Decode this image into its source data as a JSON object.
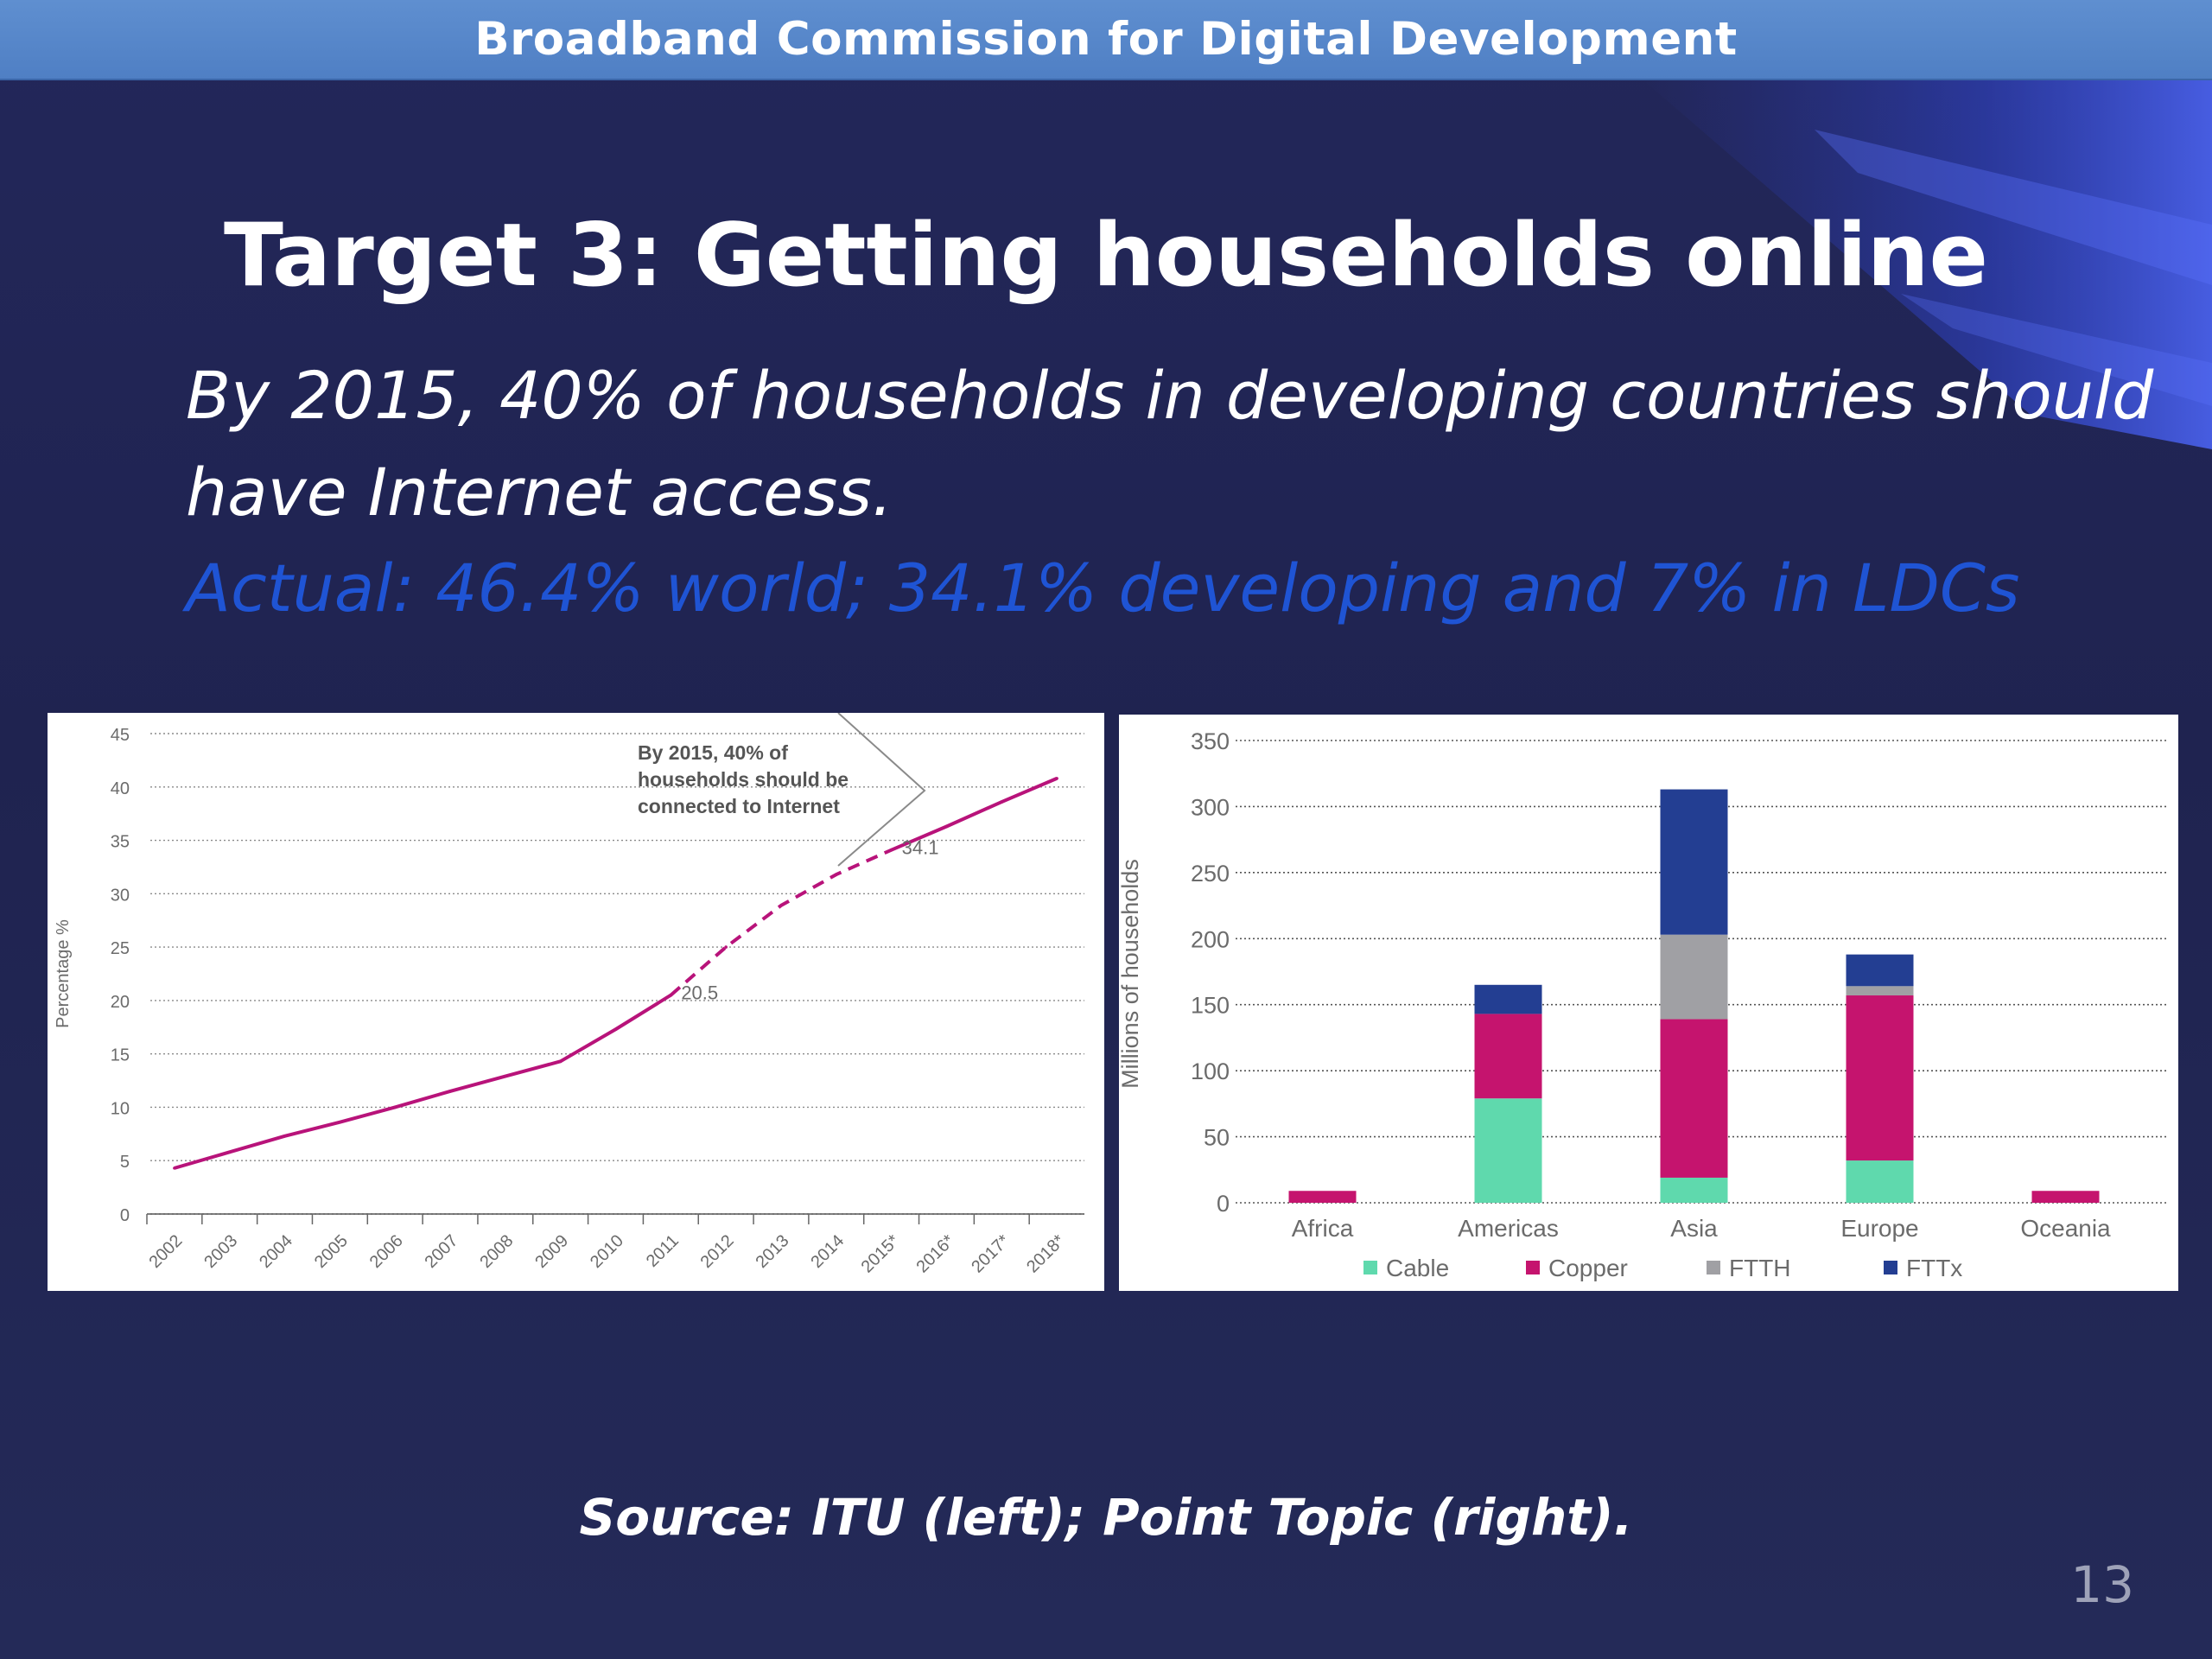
{
  "header": {
    "title": "Broadband Commission for Digital Development"
  },
  "slide": {
    "title": "Target 3: Getting households online",
    "subtitle_line1": "By 2015, 40% of households in developing countries should",
    "subtitle_line2": "have Internet access.",
    "actual_line": "Actual: 46.4% world; 34.1% developing and 7% in LDCs",
    "source": "Source: ITU (left); Point Topic (right).",
    "page_number": "13"
  },
  "colors": {
    "background": "#232654",
    "header": "#5a8ad0",
    "actual_text": "#1f54d4",
    "line": "#b8137a",
    "cable": "#5fd9ad",
    "copper": "#c5146e",
    "ftth": "#a0a0a4",
    "fttx": "#233e92"
  },
  "chart_data": [
    {
      "type": "line",
      "ylabel": "Percentage %",
      "ylim": [
        0,
        45
      ],
      "yticks": [
        0,
        5,
        10,
        15,
        20,
        25,
        30,
        35,
        40,
        45
      ],
      "categories": [
        "2002",
        "2003",
        "2004",
        "2005",
        "2006",
        "2007",
        "2008",
        "2009",
        "2010",
        "2011",
        "2012",
        "2013",
        "2014",
        "2015*",
        "2016*",
        "2017*",
        "2018*"
      ],
      "grid": true,
      "series": [
        {
          "style": "solid",
          "x": [
            "2002",
            "2003",
            "2004",
            "2005",
            "2006",
            "2007",
            "2008",
            "2009",
            "2010",
            "2011"
          ],
          "values": [
            4.3,
            5.8,
            7.3,
            8.6,
            10.0,
            11.5,
            12.9,
            14.3,
            17.3,
            20.5
          ]
        },
        {
          "style": "dashed",
          "x": [
            "2011",
            "2012",
            "2013",
            "2014",
            "2015*"
          ],
          "values": [
            20.5,
            25.0,
            28.9,
            31.8,
            34.1
          ]
        },
        {
          "style": "solid",
          "x": [
            "2015*",
            "2016*",
            "2017*",
            "2018*"
          ],
          "values": [
            34.1,
            36.3,
            38.6,
            40.8
          ]
        }
      ],
      "data_labels": [
        {
          "x": "2011",
          "value": 20.5,
          "text": "20.5"
        },
        {
          "x": "2015*",
          "value": 34.1,
          "text": "34.1"
        }
      ],
      "annotation": [
        "By 2015, 40% of",
        "households should be",
        "connected to Internet"
      ]
    },
    {
      "type": "bar",
      "stacked": true,
      "ylabel": "Millions of households",
      "ylim": [
        0,
        350
      ],
      "yticks": [
        0,
        50,
        100,
        150,
        200,
        250,
        300,
        350
      ],
      "categories": [
        "Africa",
        "Americas",
        "Asia",
        "Europe",
        "Oceania"
      ],
      "grid": true,
      "legend_position": "bottom",
      "series": [
        {
          "name": "Cable",
          "values": [
            0,
            79,
            19,
            32,
            0
          ]
        },
        {
          "name": "Copper",
          "values": [
            9,
            64,
            120,
            125,
            9
          ]
        },
        {
          "name": "FTTH",
          "values": [
            0,
            0,
            64,
            7,
            0
          ]
        },
        {
          "name": "FTTx",
          "values": [
            0,
            22,
            110,
            24,
            0
          ]
        }
      ]
    }
  ]
}
